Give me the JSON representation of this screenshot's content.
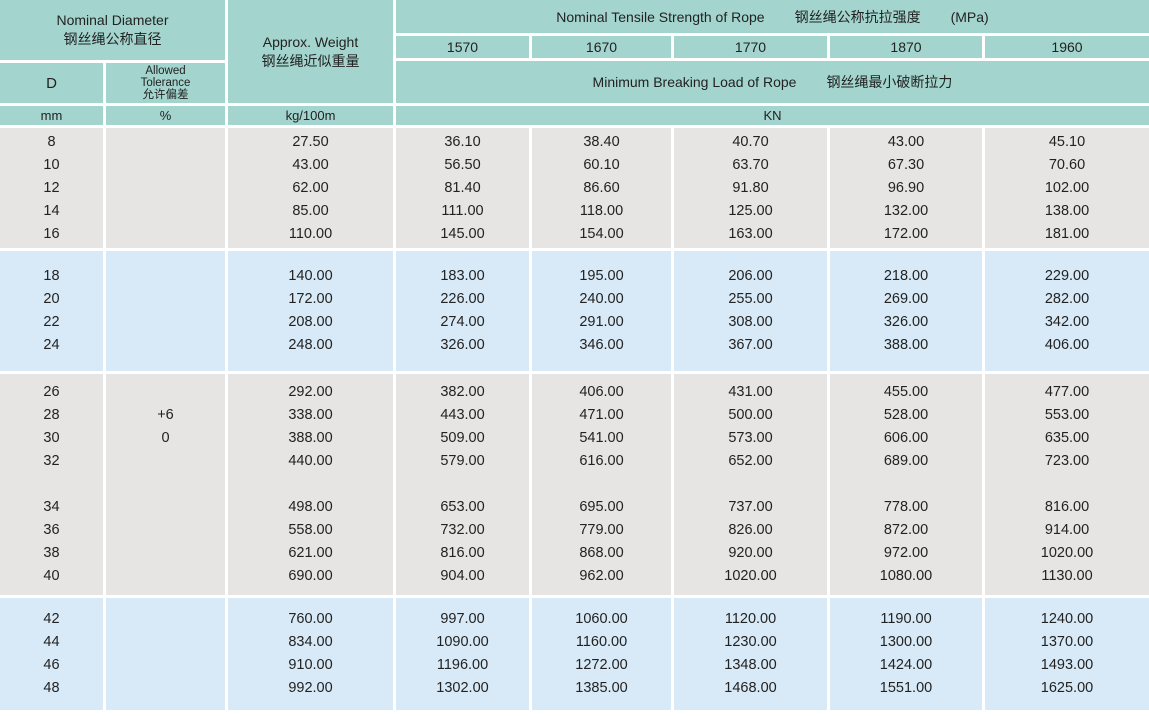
{
  "table": {
    "colors": {
      "header_teal": "#a3d5ce",
      "band_gray": "#e6e5e3",
      "band_blue": "#d8eaf7",
      "separator": "#ffffff",
      "text": "#222222"
    },
    "header": {
      "nominal_diameter_en": "Nominal Diameter",
      "nominal_diameter_zh": "钢丝绳公称直径",
      "d_label": "D",
      "tolerance_lines": [
        "Allowed",
        "Tolerance",
        "允许偏差"
      ],
      "approx_weight_en": "Approx. Weight",
      "approx_weight_zh": "钢丝绳近似重量",
      "strength_title_en": "Nominal Tensile Strength of Rope",
      "strength_title_zh": "钢丝绳公称抗拉强度",
      "strength_title_unit": "(MPa)",
      "strength_values": [
        "1570",
        "1670",
        "1770",
        "1870",
        "1960"
      ],
      "breaking_title_en": "Minimum Breaking Load of Rope",
      "breaking_title_zh": "钢丝绳最小破断拉力",
      "unit_mm": "mm",
      "unit_percent": "%",
      "unit_weight": "kg/100m",
      "unit_load": "KN"
    },
    "tolerance_value": [
      "+6",
      "0"
    ],
    "groups": [
      {
        "band": "gray",
        "rows": [
          {
            "d": "8",
            "tol": "",
            "weight": "27.50",
            "loads": [
              "36.10",
              "38.40",
              "40.70",
              "43.00",
              "45.10"
            ]
          },
          {
            "d": "10",
            "tol": "",
            "weight": "43.00",
            "loads": [
              "56.50",
              "60.10",
              "63.70",
              "67.30",
              "70.60"
            ]
          },
          {
            "d": "12",
            "tol": "",
            "weight": "62.00",
            "loads": [
              "81.40",
              "86.60",
              "91.80",
              "96.90",
              "102.00"
            ]
          },
          {
            "d": "14",
            "tol": "",
            "weight": "85.00",
            "loads": [
              "111.00",
              "118.00",
              "125.00",
              "132.00",
              "138.00"
            ]
          },
          {
            "d": "16",
            "tol": "",
            "weight": "110.00",
            "loads": [
              "145.00",
              "154.00",
              "163.00",
              "172.00",
              "181.00"
            ]
          }
        ]
      },
      {
        "band": "blue",
        "rows": [
          {
            "d": "18",
            "tol": "",
            "weight": "140.00",
            "loads": [
              "183.00",
              "195.00",
              "206.00",
              "218.00",
              "229.00"
            ]
          },
          {
            "d": "20",
            "tol": "",
            "weight": "172.00",
            "loads": [
              "226.00",
              "240.00",
              "255.00",
              "269.00",
              "282.00"
            ]
          },
          {
            "d": "22",
            "tol": "",
            "weight": "208.00",
            "loads": [
              "274.00",
              "291.00",
              "308.00",
              "326.00",
              "342.00"
            ]
          },
          {
            "d": "24",
            "tol": "",
            "weight": "248.00",
            "loads": [
              "326.00",
              "346.00",
              "367.00",
              "388.00",
              "406.00"
            ]
          }
        ]
      },
      {
        "band": "gray",
        "rows": [
          {
            "d": "26",
            "tol": "",
            "weight": "292.00",
            "loads": [
              "382.00",
              "406.00",
              "431.00",
              "455.00",
              "477.00"
            ]
          },
          {
            "d": "28",
            "tol": "+6",
            "weight": "338.00",
            "loads": [
              "443.00",
              "471.00",
              "500.00",
              "528.00",
              "553.00"
            ]
          },
          {
            "d": "30",
            "tol": "0",
            "weight": "388.00",
            "loads": [
              "509.00",
              "541.00",
              "573.00",
              "606.00",
              "635.00"
            ]
          },
          {
            "d": "32",
            "tol": "",
            "weight": "440.00",
            "loads": [
              "579.00",
              "616.00",
              "652.00",
              "689.00",
              "723.00"
            ]
          },
          {
            "spacer": true,
            "d": "",
            "tol": "",
            "weight": "",
            "loads": [
              "",
              "",
              "",
              "",
              ""
            ]
          },
          {
            "d": "34",
            "tol": "",
            "weight": "498.00",
            "loads": [
              "653.00",
              "695.00",
              "737.00",
              "778.00",
              "816.00"
            ]
          },
          {
            "d": "36",
            "tol": "",
            "weight": "558.00",
            "loads": [
              "732.00",
              "779.00",
              "826.00",
              "872.00",
              "914.00"
            ]
          },
          {
            "d": "38",
            "tol": "",
            "weight": "621.00",
            "loads": [
              "816.00",
              "868.00",
              "920.00",
              "972.00",
              "1020.00"
            ]
          },
          {
            "d": "40",
            "tol": "",
            "weight": "690.00",
            "loads": [
              "904.00",
              "962.00",
              "1020.00",
              "1080.00",
              "1130.00"
            ]
          }
        ]
      },
      {
        "band": "blue",
        "rows": [
          {
            "d": "42",
            "tol": "",
            "weight": "760.00",
            "loads": [
              "997.00",
              "1060.00",
              "1120.00",
              "1190.00",
              "1240.00"
            ]
          },
          {
            "d": "44",
            "tol": "",
            "weight": "834.00",
            "loads": [
              "1090.00",
              "1160.00",
              "1230.00",
              "1300.00",
              "1370.00"
            ]
          },
          {
            "d": "46",
            "tol": "",
            "weight": "910.00",
            "loads": [
              "1196.00",
              "1272.00",
              "1348.00",
              "1424.00",
              "1493.00"
            ]
          },
          {
            "d": "48",
            "tol": "",
            "weight": "992.00",
            "loads": [
              "1302.00",
              "1385.00",
              "1468.00",
              "1551.00",
              "1625.00"
            ]
          }
        ]
      }
    ]
  }
}
